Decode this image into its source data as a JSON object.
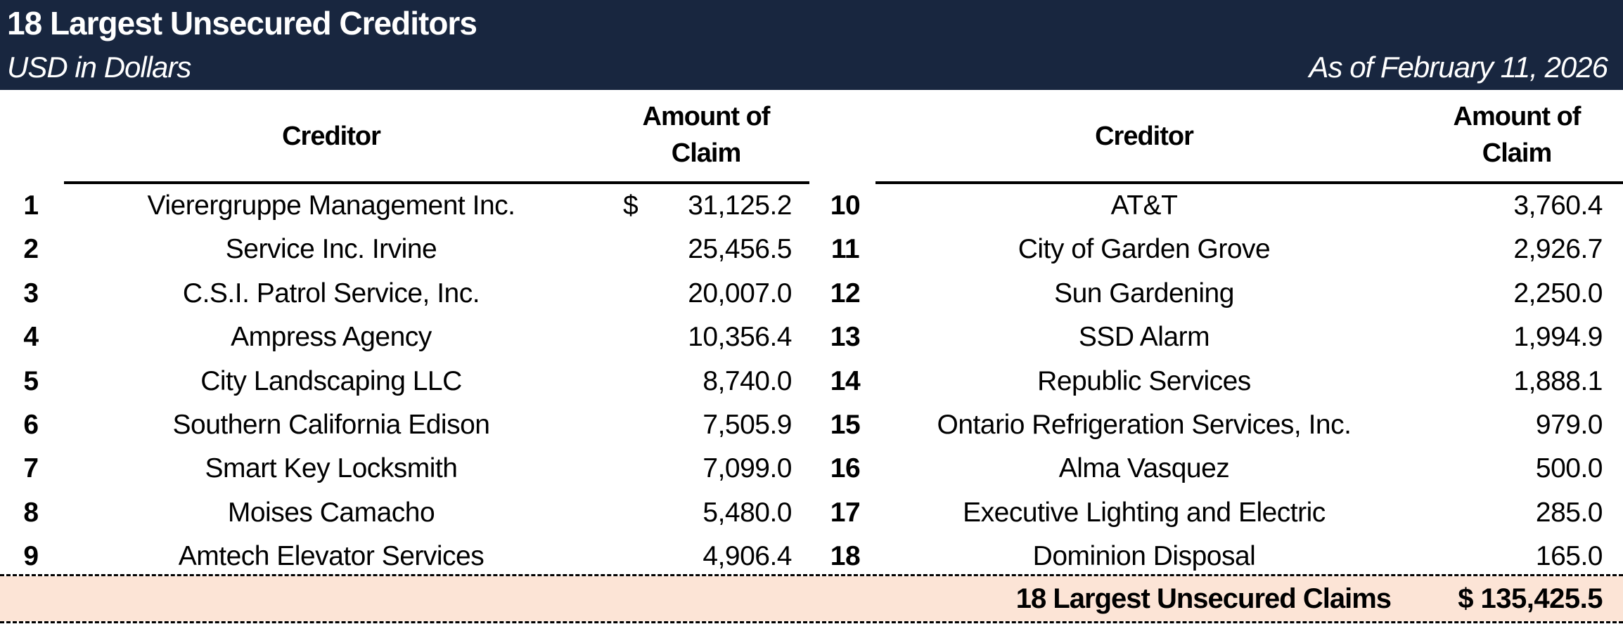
{
  "header": {
    "title": "18 Largest Unsecured Creditors",
    "subtitle": "USD in Dollars",
    "as_of": "As of February 11, 2026",
    "bg_color": "#18263f"
  },
  "columns": {
    "creditor": "Creditor",
    "amount": "Amount of Claim"
  },
  "currency_symbol": "$",
  "rows": [
    {
      "n": "1",
      "name": "Vierergruppe Management Inc.",
      "amount": "31,125.2"
    },
    {
      "n": "2",
      "name": "Service Inc. Irvine",
      "amount": "25,456.5"
    },
    {
      "n": "3",
      "name": "C.S.I. Patrol Service, Inc.",
      "amount": "20,007.0"
    },
    {
      "n": "4",
      "name": "Ampress Agency",
      "amount": "10,356.4"
    },
    {
      "n": "5",
      "name": "City Landscaping LLC",
      "amount": "8,740.0"
    },
    {
      "n": "6",
      "name": "Southern California Edison",
      "amount": "7,505.9"
    },
    {
      "n": "7",
      "name": "Smart Key Locksmith",
      "amount": "7,099.0"
    },
    {
      "n": "8",
      "name": "Moises Camacho",
      "amount": "5,480.0"
    },
    {
      "n": "9",
      "name": "Amtech Elevator Services",
      "amount": "4,906.4"
    },
    {
      "n": "10",
      "name": "AT&T",
      "amount": "3,760.4"
    },
    {
      "n": "11",
      "name": "City of Garden Grove",
      "amount": "2,926.7"
    },
    {
      "n": "12",
      "name": "Sun Gardening",
      "amount": "2,250.0"
    },
    {
      "n": "13",
      "name": "SSD Alarm",
      "amount": "1,994.9"
    },
    {
      "n": "14",
      "name": "Republic Services",
      "amount": "1,888.1"
    },
    {
      "n": "15",
      "name": "Ontario Refrigeration Services, Inc.",
      "amount": "979.0"
    },
    {
      "n": "16",
      "name": "Alma Vasquez",
      "amount": "500.0"
    },
    {
      "n": "17",
      "name": "Executive Lighting and Electric",
      "amount": "285.0"
    },
    {
      "n": "18",
      "name": "Dominion Disposal",
      "amount": "165.0"
    }
  ],
  "total": {
    "label": "18 Largest Unsecured Claims",
    "value": "$ 135,425.5",
    "bg_color": "#fce4d6"
  }
}
